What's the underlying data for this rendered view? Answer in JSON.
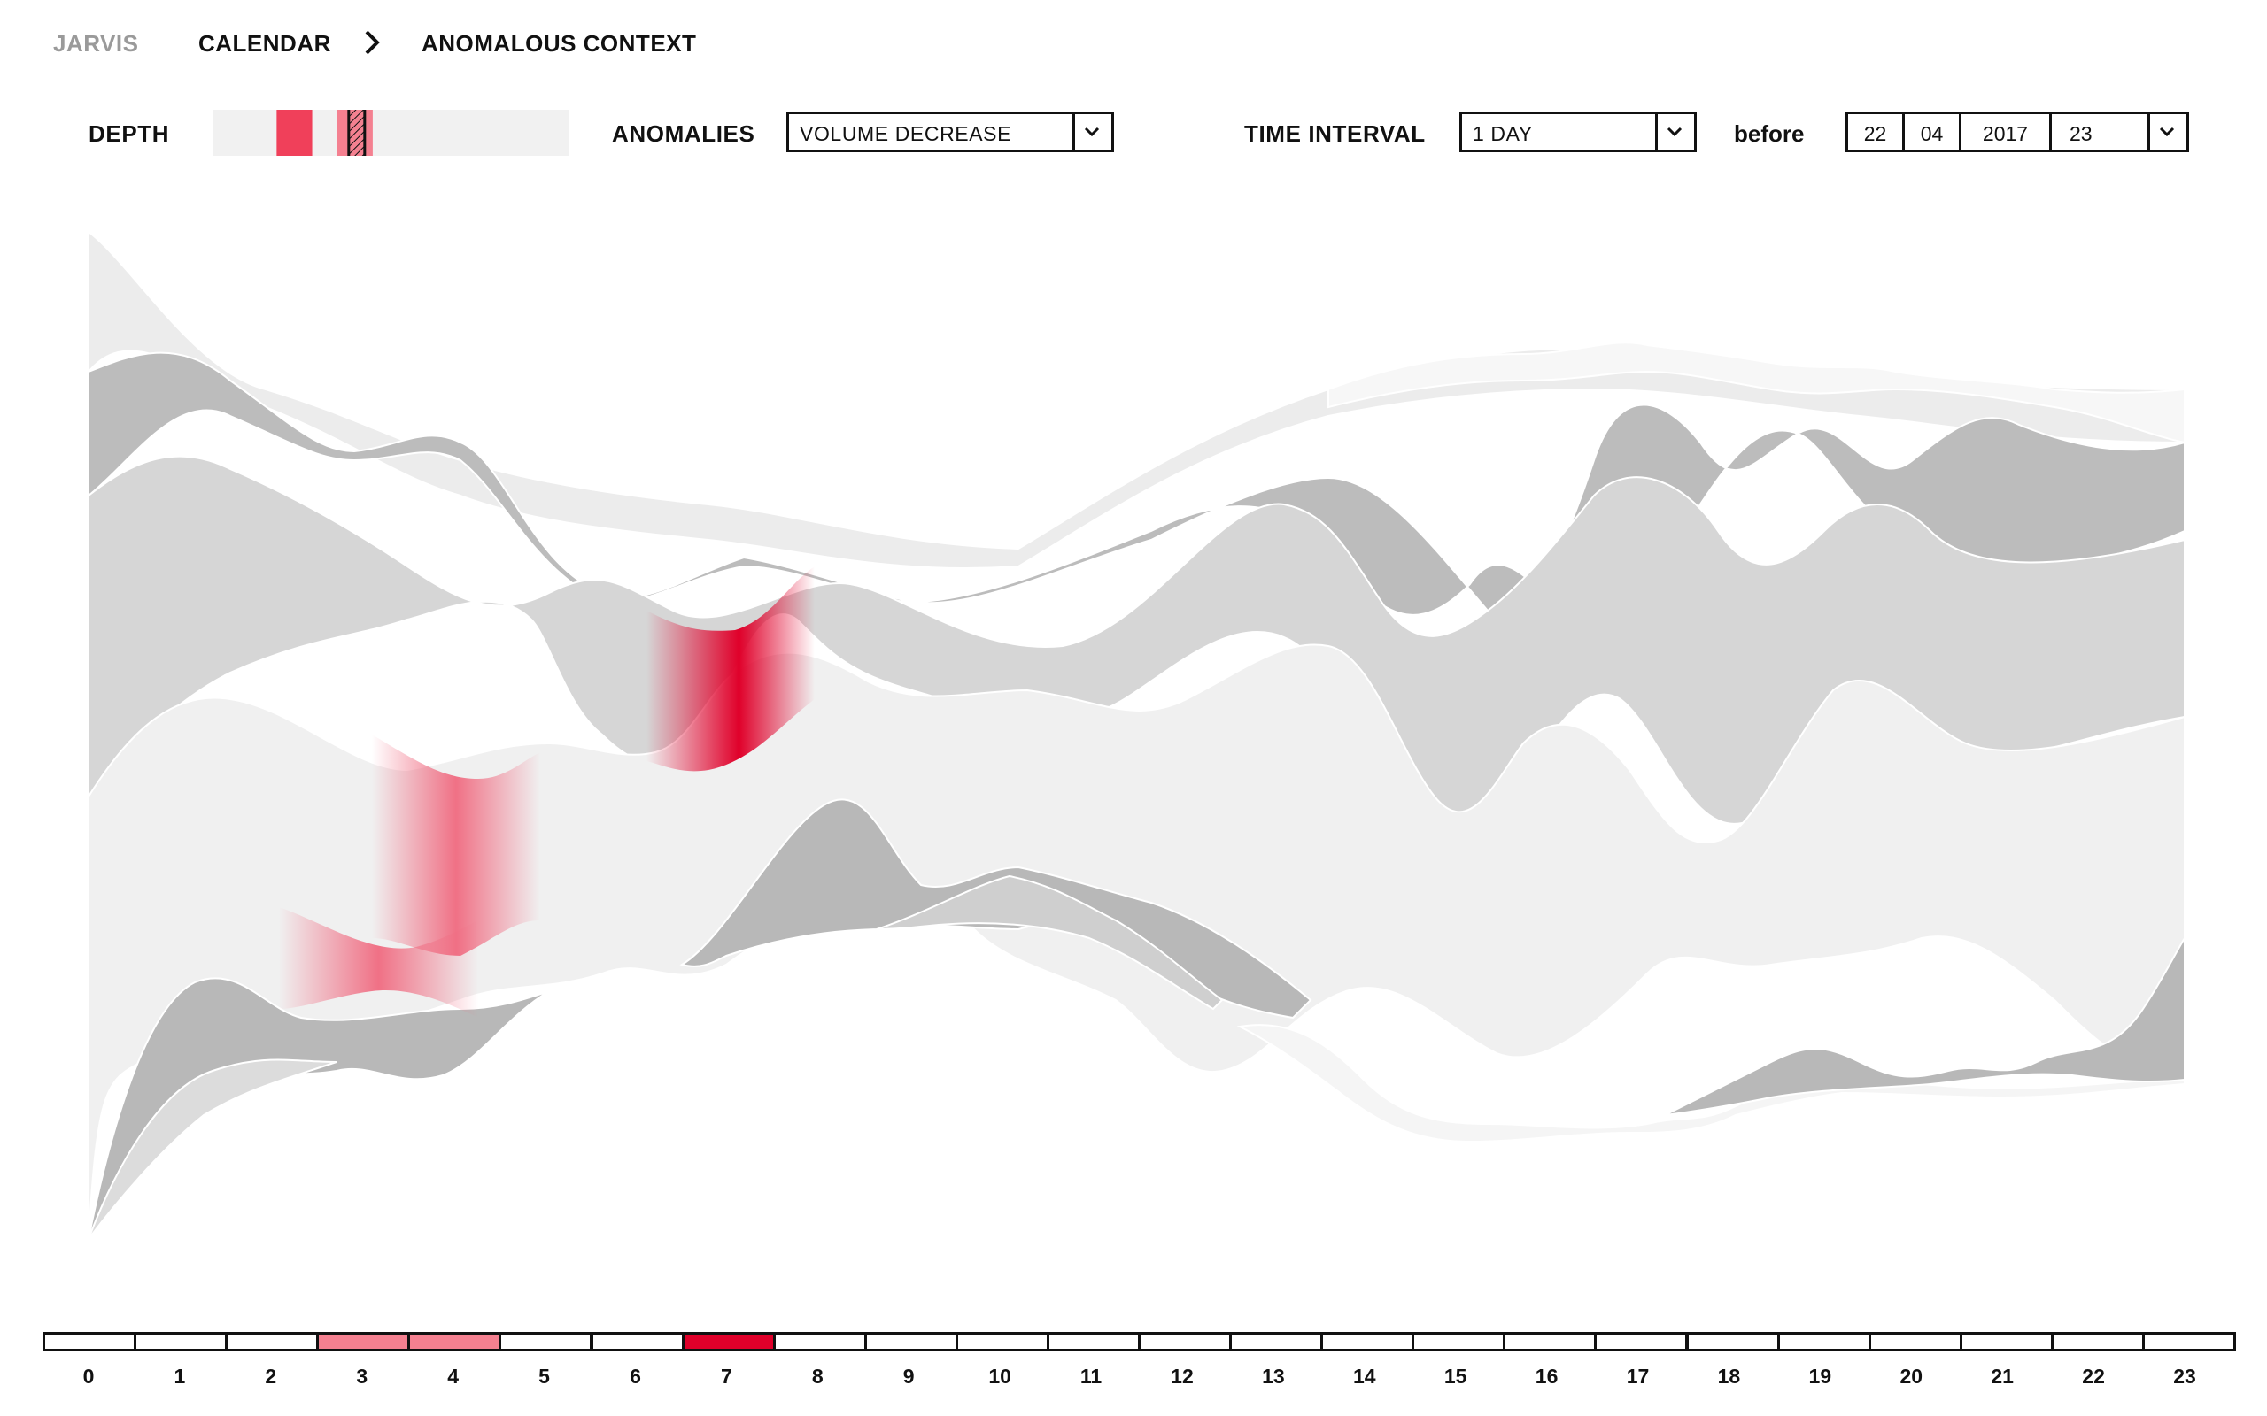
{
  "breadcrumb": {
    "app": "JARVIS",
    "section": "CALENDAR",
    "page": "ANOMALOUS CONTEXT"
  },
  "controls": {
    "depth_label": "DEPTH",
    "depth_marks": [
      {
        "start": 0.18,
        "end": 0.28,
        "color": "#f0405a"
      },
      {
        "start": 0.35,
        "end": 0.45,
        "color": "#f48090"
      }
    ],
    "depth_handle": 0.405,
    "anomalies_label": "ANOMALIES",
    "anomalies_value": "VOLUME DECREASE",
    "time_interval_label": "TIME INTERVAL",
    "time_interval_value": "1 DAY",
    "before_label": "before",
    "date": {
      "day": "22",
      "month": "04",
      "year": "2017",
      "hour": "23"
    }
  },
  "colors": {
    "grey_dark": "#b8b8b8",
    "grey_mid": "#d4d4d4",
    "grey_light": "#e6e6e6",
    "grey_pale": "#f0f0f0",
    "anomaly_light": "#f06a80",
    "anomaly_strong": "#e0002a"
  },
  "timeline": {
    "hours": [
      "0",
      "1",
      "2",
      "3",
      "4",
      "5",
      "6",
      "7",
      "8",
      "9",
      "10",
      "11",
      "12",
      "13",
      "14",
      "15",
      "16",
      "17",
      "18",
      "19",
      "20",
      "21",
      "22",
      "23"
    ],
    "highlight": {
      "3": "#f48090",
      "4": "#f48090",
      "7": "#e0002a"
    }
  }
}
